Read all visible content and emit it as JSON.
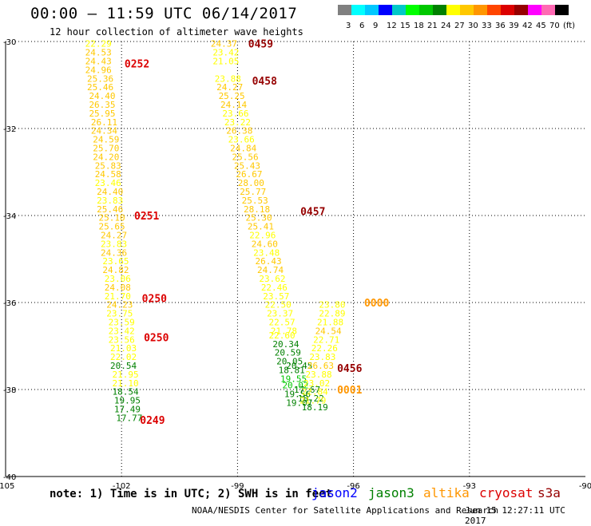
{
  "header": {
    "title": "00:00 – 11:59 UTC 06/14/2017",
    "subtitle": "12 hour collection of altimeter wave heights"
  },
  "colorbar": {
    "swatches": [
      "#808080",
      "#00ffff",
      "#00c8ff",
      "#0000ff",
      "#00c8c8",
      "#00ff00",
      "#00c800",
      "#008000",
      "#ffff00",
      "#ffc800",
      "#ff9600",
      "#ff4500",
      "#dc0000",
      "#960000",
      "#ff00ff",
      "#ff69b4",
      "#000000"
    ],
    "labels": [
      "3",
      "6",
      "9",
      "12",
      "15",
      "18",
      "21",
      "24",
      "27",
      "30",
      "33",
      "36",
      "39",
      "42",
      "45",
      "70",
      "(ft)"
    ]
  },
  "footer": {
    "note": "note: 1) Time is in UTC; 2) SWH is in feet",
    "satellites": [
      {
        "name": "jason2",
        "color": "#0000ff"
      },
      {
        "name": "jason3",
        "color": "#008000"
      },
      {
        "name": "altika",
        "color": "#ff9600"
      },
      {
        "name": "cryosat",
        "color": "#dc0000"
      },
      {
        "name": "s3a",
        "color": "#960000"
      }
    ],
    "credit": "NOAA/NESDIS Center for Satellite Applications and Research",
    "timestamp": "Jun 15 12:27:11 UTC 2017"
  },
  "chart_data": {
    "type": "scatter",
    "xlabel": "",
    "ylabel": "",
    "xlim": [
      -105,
      -90
    ],
    "ylim": [
      -40,
      -30
    ],
    "xticks": [
      -105,
      -102,
      -99,
      -96,
      -93,
      -90
    ],
    "yticks": [
      -30,
      -32,
      -34,
      -36,
      -38,
      -40
    ],
    "grid": true,
    "colors": {
      "yellow": "#ffff00",
      "gold": "#ffc800",
      "orange": "#ff9600",
      "darkgreen": "#008000",
      "green": "#00c800",
      "red": "#dc0000",
      "maroon": "#960000"
    },
    "points": [
      {
        "x": -102.6,
        "y": -30.05,
        "label": "22.29",
        "color": "#ffff00"
      },
      {
        "x": -102.6,
        "y": -30.25,
        "label": "24.53",
        "color": "#ffc800"
      },
      {
        "x": -102.6,
        "y": -30.45,
        "label": "24.43",
        "color": "#ffc800"
      },
      {
        "x": -102.6,
        "y": -30.65,
        "label": "24.96",
        "color": "#ffc800"
      },
      {
        "x": -102.55,
        "y": -30.85,
        "label": "25.36",
        "color": "#ffc800"
      },
      {
        "x": -102.55,
        "y": -31.05,
        "label": "25.46",
        "color": "#ffc800"
      },
      {
        "x": -102.5,
        "y": -31.25,
        "label": "24.40",
        "color": "#ffc800"
      },
      {
        "x": -102.5,
        "y": -31.45,
        "label": "26.35",
        "color": "#ffc800"
      },
      {
        "x": -102.5,
        "y": -31.65,
        "label": "25.95",
        "color": "#ffc800"
      },
      {
        "x": -102.45,
        "y": -31.85,
        "label": "26.11",
        "color": "#ffc800"
      },
      {
        "x": -102.45,
        "y": -32.05,
        "label": "24.34",
        "color": "#ffc800"
      },
      {
        "x": -102.4,
        "y": -32.25,
        "label": "24.59",
        "color": "#ffc800"
      },
      {
        "x": -102.4,
        "y": -32.45,
        "label": "25.70",
        "color": "#ffc800"
      },
      {
        "x": -102.4,
        "y": -32.65,
        "label": "24.20",
        "color": "#ffc800"
      },
      {
        "x": -102.35,
        "y": -32.85,
        "label": "25.83",
        "color": "#ffc800"
      },
      {
        "x": -102.35,
        "y": -33.05,
        "label": "24.58",
        "color": "#ffc800"
      },
      {
        "x": -102.35,
        "y": -33.25,
        "label": "23.46",
        "color": "#ffff00"
      },
      {
        "x": -102.3,
        "y": -33.45,
        "label": "24.40",
        "color": "#ffc800"
      },
      {
        "x": -102.3,
        "y": -33.65,
        "label": "23.83",
        "color": "#ffff00"
      },
      {
        "x": -102.3,
        "y": -33.85,
        "label": "25.46",
        "color": "#ffc800"
      },
      {
        "x": -102.25,
        "y": -34.05,
        "label": "25.10",
        "color": "#ffc800"
      },
      {
        "x": -102.25,
        "y": -34.25,
        "label": "25.65",
        "color": "#ffc800"
      },
      {
        "x": -102.2,
        "y": -34.45,
        "label": "24.27",
        "color": "#ffc800"
      },
      {
        "x": -102.2,
        "y": -34.65,
        "label": "23.83",
        "color": "#ffff00"
      },
      {
        "x": -102.2,
        "y": -34.85,
        "label": "24.36",
        "color": "#ffc800"
      },
      {
        "x": -102.15,
        "y": -35.05,
        "label": "23.65",
        "color": "#ffff00"
      },
      {
        "x": -102.15,
        "y": -35.25,
        "label": "24.82",
        "color": "#ffc800"
      },
      {
        "x": -102.1,
        "y": -35.45,
        "label": "23.06",
        "color": "#ffff00"
      },
      {
        "x": -102.1,
        "y": -35.65,
        "label": "24.08",
        "color": "#ffc800"
      },
      {
        "x": -102.1,
        "y": -35.85,
        "label": "21.70",
        "color": "#ffff00"
      },
      {
        "x": -102.05,
        "y": -36.05,
        "label": "24.23",
        "color": "#ffc800"
      },
      {
        "x": -102.05,
        "y": -36.25,
        "label": "23.75",
        "color": "#ffff00"
      },
      {
        "x": -102.0,
        "y": -36.45,
        "label": "23.59",
        "color": "#ffff00"
      },
      {
        "x": -102.0,
        "y": -36.65,
        "label": "23.42",
        "color": "#ffff00"
      },
      {
        "x": -102.0,
        "y": -36.85,
        "label": "23.56",
        "color": "#ffff00"
      },
      {
        "x": -101.95,
        "y": -37.05,
        "label": "21.03",
        "color": "#ffff00"
      },
      {
        "x": -101.95,
        "y": -37.25,
        "label": "22.02",
        "color": "#ffff00"
      },
      {
        "x": -101.95,
        "y": -37.45,
        "label": "20.54",
        "color": "#008000"
      },
      {
        "x": -101.9,
        "y": -37.65,
        "label": "21.95",
        "color": "#ffff00"
      },
      {
        "x": -101.9,
        "y": -37.85,
        "label": "21.10",
        "color": "#ffff00"
      },
      {
        "x": -101.9,
        "y": -38.05,
        "label": "18.54",
        "color": "#008000"
      },
      {
        "x": -101.85,
        "y": -38.25,
        "label": "19.95",
        "color": "#008000"
      },
      {
        "x": -101.85,
        "y": -38.45,
        "label": "17.49",
        "color": "#008000"
      },
      {
        "x": -101.8,
        "y": -38.65,
        "label": "17.77",
        "color": "#008000"
      },
      {
        "x": -99.35,
        "y": -30.05,
        "label": "24.37",
        "color": "#ffc800"
      },
      {
        "x": -99.3,
        "y": -30.25,
        "label": "23.42",
        "color": "#ffff00"
      },
      {
        "x": -99.3,
        "y": -30.45,
        "label": "21.05",
        "color": "#ffff00"
      },
      {
        "x": -99.25,
        "y": -30.85,
        "label": "23.88",
        "color": "#ffff00"
      },
      {
        "x": -99.2,
        "y": -31.05,
        "label": "24.27",
        "color": "#ffc800"
      },
      {
        "x": -99.15,
        "y": -31.25,
        "label": "25.25",
        "color": "#ffc800"
      },
      {
        "x": -99.1,
        "y": -31.45,
        "label": "24.14",
        "color": "#ffc800"
      },
      {
        "x": -99.05,
        "y": -31.65,
        "label": "23.66",
        "color": "#ffff00"
      },
      {
        "x": -99.0,
        "y": -31.85,
        "label": "23.22",
        "color": "#ffff00"
      },
      {
        "x": -98.95,
        "y": -32.05,
        "label": "26.38",
        "color": "#ffc800"
      },
      {
        "x": -98.9,
        "y": -32.25,
        "label": "23.66",
        "color": "#ffff00"
      },
      {
        "x": -98.85,
        "y": -32.45,
        "label": "24.84",
        "color": "#ffc800"
      },
      {
        "x": -98.8,
        "y": -32.65,
        "label": "25.56",
        "color": "#ffc800"
      },
      {
        "x": -98.75,
        "y": -32.85,
        "label": "25.43",
        "color": "#ffc800"
      },
      {
        "x": -98.7,
        "y": -33.05,
        "label": "26.67",
        "color": "#ffc800"
      },
      {
        "x": -98.65,
        "y": -33.25,
        "label": "28.00",
        "color": "#ffc800"
      },
      {
        "x": -98.6,
        "y": -33.45,
        "label": "25.77",
        "color": "#ffc800"
      },
      {
        "x": -98.55,
        "y": -33.65,
        "label": "25.53",
        "color": "#ffc800"
      },
      {
        "x": -98.5,
        "y": -33.85,
        "label": "28.18",
        "color": "#ffc800"
      },
      {
        "x": -98.45,
        "y": -34.05,
        "label": "25.30",
        "color": "#ffc800"
      },
      {
        "x": -98.4,
        "y": -34.25,
        "label": "25.41",
        "color": "#ffc800"
      },
      {
        "x": -98.35,
        "y": -34.45,
        "label": "22.96",
        "color": "#ffff00"
      },
      {
        "x": -98.3,
        "y": -34.65,
        "label": "24.60",
        "color": "#ffc800"
      },
      {
        "x": -98.25,
        "y": -34.85,
        "label": "23.48",
        "color": "#ffff00"
      },
      {
        "x": -98.2,
        "y": -35.05,
        "label": "26.43",
        "color": "#ffc800"
      },
      {
        "x": -98.15,
        "y": -35.25,
        "label": "24.74",
        "color": "#ffc800"
      },
      {
        "x": -98.1,
        "y": -35.45,
        "label": "23.62",
        "color": "#ffff00"
      },
      {
        "x": -98.05,
        "y": -35.65,
        "label": "22.46",
        "color": "#ffff00"
      },
      {
        "x": -98.0,
        "y": -35.85,
        "label": "23.57",
        "color": "#ffff00"
      },
      {
        "x": -97.95,
        "y": -36.05,
        "label": "22.50",
        "color": "#ffff00"
      },
      {
        "x": -97.9,
        "y": -36.25,
        "label": "23.37",
        "color": "#ffff00"
      },
      {
        "x": -97.85,
        "y": -36.45,
        "label": "22.57",
        "color": "#ffff00"
      },
      {
        "x": -97.8,
        "y": -36.65,
        "label": "21.78",
        "color": "#ffff00"
      },
      {
        "x": -97.85,
        "y": -36.75,
        "label": "22.60",
        "color": "#ffff00"
      },
      {
        "x": -97.75,
        "y": -36.95,
        "label": "20.34",
        "color": "#008000"
      },
      {
        "x": -97.7,
        "y": -37.15,
        "label": "20.59",
        "color": "#008000"
      },
      {
        "x": -97.65,
        "y": -37.35,
        "label": "20.05",
        "color": "#008000"
      },
      {
        "x": -97.4,
        "y": -37.45,
        "label": "20.45",
        "color": "#008000"
      },
      {
        "x": -97.6,
        "y": -37.55,
        "label": "18.81",
        "color": "#008000"
      },
      {
        "x": -97.55,
        "y": -37.75,
        "label": "19.55",
        "color": "#00c800"
      },
      {
        "x": -97.5,
        "y": -37.9,
        "label": "20.02",
        "color": "#00c800"
      },
      {
        "x": -97.2,
        "y": -38.0,
        "label": "17.67",
        "color": "#008000"
      },
      {
        "x": -97.45,
        "y": -38.1,
        "label": "19.56",
        "color": "#008000"
      },
      {
        "x": -97.1,
        "y": -38.2,
        "label": "18.22",
        "color": "#008000"
      },
      {
        "x": -97.4,
        "y": -38.3,
        "label": "19.07",
        "color": "#008000"
      },
      {
        "x": -97.0,
        "y": -38.4,
        "label": "18.19",
        "color": "#008000"
      },
      {
        "x": -96.55,
        "y": -36.05,
        "label": "23.80",
        "color": "#ffff00"
      },
      {
        "x": -96.55,
        "y": -36.25,
        "label": "22.89",
        "color": "#ffff00"
      },
      {
        "x": -96.6,
        "y": -36.45,
        "label": "21.88",
        "color": "#ffff00"
      },
      {
        "x": -96.65,
        "y": -36.65,
        "label": "24.54",
        "color": "#ffc800"
      },
      {
        "x": -96.7,
        "y": -36.85,
        "label": "22.71",
        "color": "#ffff00"
      },
      {
        "x": -96.75,
        "y": -37.05,
        "label": "22.26",
        "color": "#ffff00"
      },
      {
        "x": -96.8,
        "y": -37.25,
        "label": "23.83",
        "color": "#ffff00"
      },
      {
        "x": -96.85,
        "y": -37.45,
        "label": "26.63",
        "color": "#ffc800"
      },
      {
        "x": -96.9,
        "y": -37.65,
        "label": "23.88",
        "color": "#ffff00"
      },
      {
        "x": -96.95,
        "y": -37.85,
        "label": "23.02",
        "color": "#ffff00"
      },
      {
        "x": -97.0,
        "y": -38.05,
        "label": "22.84",
        "color": "#ffff00"
      },
      {
        "x": -97.05,
        "y": -38.25,
        "label": "21.79",
        "color": "#ffff00"
      }
    ],
    "annotations": [
      {
        "x": -101.6,
        "y": -30.5,
        "label": "0252",
        "color": "#dc0000"
      },
      {
        "x": -101.35,
        "y": -34.0,
        "label": "0251",
        "color": "#dc0000"
      },
      {
        "x": -101.15,
        "y": -35.9,
        "label": "0250",
        "color": "#dc0000"
      },
      {
        "x": -101.1,
        "y": -36.8,
        "label": "0250",
        "color": "#dc0000"
      },
      {
        "x": -101.2,
        "y": -38.7,
        "label": "0249",
        "color": "#dc0000"
      },
      {
        "x": -98.4,
        "y": -30.05,
        "label": "0459",
        "color": "#960000"
      },
      {
        "x": -98.3,
        "y": -30.9,
        "label": "0458",
        "color": "#960000"
      },
      {
        "x": -97.05,
        "y": -33.9,
        "label": "0457",
        "color": "#960000"
      },
      {
        "x": -96.1,
        "y": -37.5,
        "label": "0456",
        "color": "#960000"
      },
      {
        "x": -95.4,
        "y": -36.0,
        "label": "0000",
        "color": "#ff9600"
      },
      {
        "x": -96.1,
        "y": -38.0,
        "label": "0001",
        "color": "#ff9600"
      }
    ]
  }
}
